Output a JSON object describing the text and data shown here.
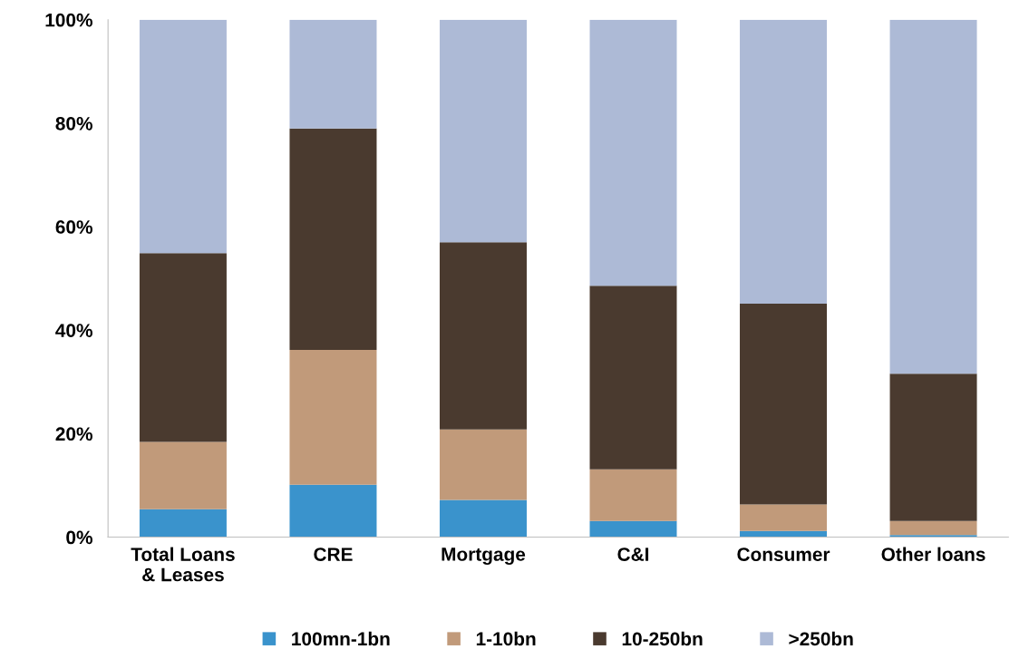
{
  "chart_data": {
    "type": "bar",
    "stacked": true,
    "categories": [
      "Total Loans\n& Leases",
      "CRE",
      "Mortgage",
      "C&I",
      "Consumer",
      "Other loans"
    ],
    "series": [
      {
        "name": "100mn-1bn",
        "color": "#3a93cc",
        "values": [
          5.4,
          10.1,
          7.2,
          3.1,
          1.2,
          0.4
        ]
      },
      {
        "name": "1-10bn",
        "color": "#c19a7a",
        "values": [
          13.0,
          26.1,
          13.6,
          10.0,
          5.1,
          2.7
        ]
      },
      {
        "name": "10-250bn",
        "color": "#4a3a2f",
        "values": [
          36.5,
          42.8,
          36.2,
          35.5,
          38.8,
          28.5
        ]
      },
      {
        "name": ">250bn",
        "color": "#adbad6",
        "values": [
          45.1,
          21.0,
          43.0,
          51.4,
          54.9,
          68.4
        ]
      }
    ],
    "ylim": [
      0,
      100
    ],
    "yticks": [
      {
        "value": 0,
        "label": "0%"
      },
      {
        "value": 20,
        "label": "20%"
      },
      {
        "value": 40,
        "label": "40%"
      },
      {
        "value": 60,
        "label": "60%"
      },
      {
        "value": 80,
        "label": "80%"
      },
      {
        "value": 100,
        "label": "100%"
      }
    ],
    "grid": false,
    "legend": "bottom"
  }
}
